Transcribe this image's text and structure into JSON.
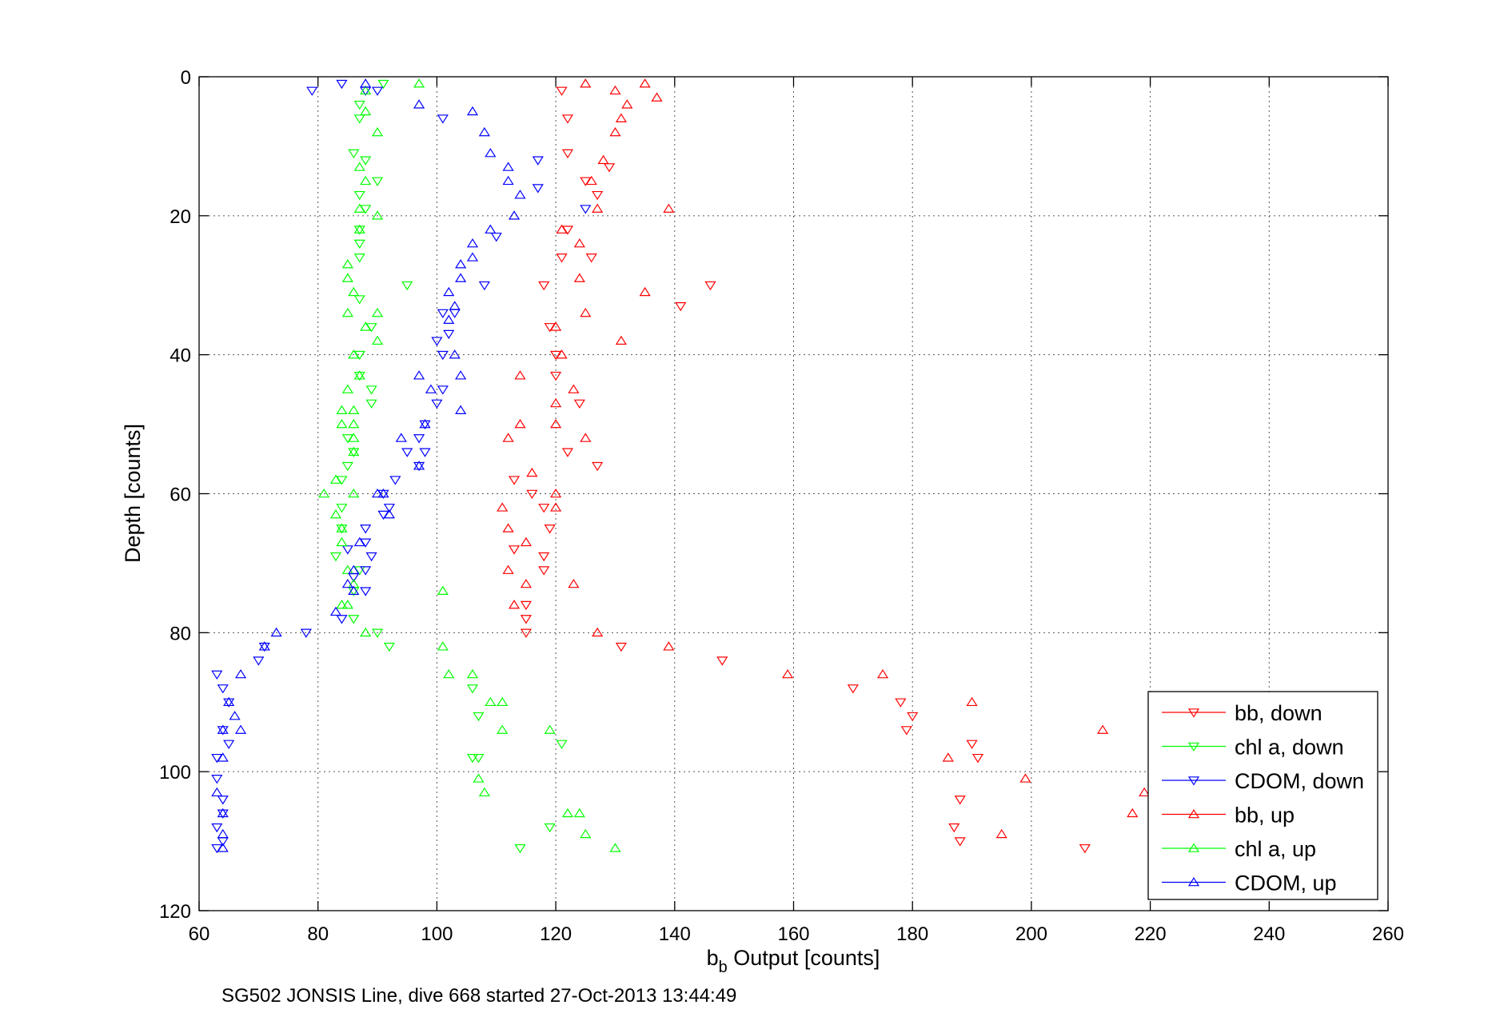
{
  "chart_data": {
    "type": "scatter",
    "xlabel_main": "b",
    "xlabel_sub": "b",
    "xlabel_rest": " Output [counts]",
    "ylabel": "Depth [counts]",
    "caption": "SG502 JONSIS Line, dive 668 started 27-Oct-2013 13:44:49",
    "xlim": [
      60,
      260
    ],
    "ylim": [
      0,
      120
    ],
    "y_reversed": true,
    "grid": true,
    "legend_position": "bottom-right",
    "xticks": [
      "60",
      "80",
      "100",
      "120",
      "140",
      "160",
      "180",
      "200",
      "220",
      "240",
      "260"
    ],
    "yticks": [
      "0",
      "20",
      "40",
      "60",
      "80",
      "100",
      "120"
    ],
    "series": [
      {
        "name": "bb, down",
        "color": "#ff0000",
        "marker": "triangle-down",
        "points": [
          [
            121,
            2
          ],
          [
            122,
            6
          ],
          [
            122,
            11
          ],
          [
            129,
            13
          ],
          [
            125,
            15
          ],
          [
            127,
            17
          ],
          [
            122,
            22
          ],
          [
            121,
            26
          ],
          [
            126,
            26
          ],
          [
            118,
            30
          ],
          [
            146,
            30
          ],
          [
            141,
            33
          ],
          [
            119,
            36
          ],
          [
            120,
            40
          ],
          [
            120,
            43
          ],
          [
            124,
            47
          ],
          [
            122,
            54
          ],
          [
            127,
            56
          ],
          [
            113,
            58
          ],
          [
            116,
            60
          ],
          [
            118,
            62
          ],
          [
            119,
            65
          ],
          [
            113,
            68
          ],
          [
            118,
            69
          ],
          [
            118,
            71
          ],
          [
            115,
            76
          ],
          [
            115,
            78
          ],
          [
            115,
            80
          ],
          [
            131,
            82
          ],
          [
            148,
            84
          ],
          [
            170,
            88
          ],
          [
            178,
            90
          ],
          [
            180,
            92
          ],
          [
            179,
            94
          ],
          [
            190,
            96
          ],
          [
            191,
            98
          ],
          [
            188,
            104
          ],
          [
            187,
            108
          ],
          [
            188,
            110
          ],
          [
            209,
            111
          ]
        ]
      },
      {
        "name": "chl a, down",
        "color": "#00ff00",
        "marker": "triangle-down",
        "points": [
          [
            91,
            1
          ],
          [
            87,
            4
          ],
          [
            87,
            6
          ],
          [
            86,
            11
          ],
          [
            88,
            12
          ],
          [
            90,
            15
          ],
          [
            87,
            17
          ],
          [
            88,
            19
          ],
          [
            87,
            22
          ],
          [
            87,
            24
          ],
          [
            87,
            26
          ],
          [
            95,
            30
          ],
          [
            87,
            32
          ],
          [
            89,
            36
          ],
          [
            87,
            40
          ],
          [
            87,
            43
          ],
          [
            89,
            45
          ],
          [
            89,
            47
          ],
          [
            85,
            52
          ],
          [
            86,
            54
          ],
          [
            85,
            56
          ],
          [
            84,
            58
          ],
          [
            84,
            62
          ],
          [
            84,
            65
          ],
          [
            83,
            69
          ],
          [
            87,
            71
          ],
          [
            86,
            74
          ],
          [
            86,
            78
          ],
          [
            90,
            80
          ],
          [
            92,
            82
          ],
          [
            106,
            88
          ],
          [
            107,
            92
          ],
          [
            106,
            98
          ],
          [
            107,
            98
          ],
          [
            121,
            96
          ],
          [
            119,
            108
          ],
          [
            114,
            111
          ]
        ]
      },
      {
        "name": "CDOM, down",
        "color": "#0000ff",
        "marker": "triangle-down",
        "points": [
          [
            84,
            1
          ],
          [
            88,
            2
          ],
          [
            90,
            2
          ],
          [
            79,
            2
          ],
          [
            101,
            6
          ],
          [
            117,
            12
          ],
          [
            117,
            16
          ],
          [
            125,
            19
          ],
          [
            110,
            23
          ],
          [
            108,
            30
          ],
          [
            101,
            34
          ],
          [
            103,
            34
          ],
          [
            102,
            37
          ],
          [
            100,
            38
          ],
          [
            101,
            40
          ],
          [
            101,
            45
          ],
          [
            100,
            47
          ],
          [
            98,
            50
          ],
          [
            97,
            52
          ],
          [
            95,
            54
          ],
          [
            98,
            54
          ],
          [
            97,
            56
          ],
          [
            93,
            58
          ],
          [
            91,
            60
          ],
          [
            92,
            62
          ],
          [
            91,
            63
          ],
          [
            88,
            65
          ],
          [
            88,
            67
          ],
          [
            85,
            68
          ],
          [
            89,
            69
          ],
          [
            88,
            71
          ],
          [
            86,
            72
          ],
          [
            88,
            74
          ],
          [
            84,
            78
          ],
          [
            78,
            80
          ],
          [
            71,
            82
          ],
          [
            70,
            84
          ],
          [
            63,
            86
          ],
          [
            64,
            88
          ],
          [
            65,
            90
          ],
          [
            64,
            94
          ],
          [
            65,
            96
          ],
          [
            63,
            98
          ],
          [
            63,
            101
          ],
          [
            64,
            104
          ],
          [
            64,
            106
          ],
          [
            63,
            108
          ],
          [
            64,
            110
          ],
          [
            63,
            111
          ]
        ]
      },
      {
        "name": "bb, up",
        "color": "#ff0000",
        "marker": "triangle-up",
        "points": [
          [
            125,
            1
          ],
          [
            130,
            2
          ],
          [
            135,
            1
          ],
          [
            137,
            3
          ],
          [
            132,
            4
          ],
          [
            131,
            6
          ],
          [
            130,
            8
          ],
          [
            128,
            12
          ],
          [
            126,
            15
          ],
          [
            127,
            19
          ],
          [
            139,
            19
          ],
          [
            121,
            22
          ],
          [
            124,
            24
          ],
          [
            124,
            29
          ],
          [
            135,
            31
          ],
          [
            120,
            36
          ],
          [
            125,
            34
          ],
          [
            131,
            38
          ],
          [
            121,
            40
          ],
          [
            114,
            43
          ],
          [
            123,
            45
          ],
          [
            120,
            47
          ],
          [
            114,
            50
          ],
          [
            120,
            50
          ],
          [
            112,
            52
          ],
          [
            125,
            52
          ],
          [
            116,
            57
          ],
          [
            120,
            60
          ],
          [
            111,
            62
          ],
          [
            120,
            62
          ],
          [
            112,
            65
          ],
          [
            115,
            67
          ],
          [
            112,
            71
          ],
          [
            115,
            73
          ],
          [
            123,
            73
          ],
          [
            113,
            76
          ],
          [
            127,
            80
          ],
          [
            139,
            82
          ],
          [
            159,
            86
          ],
          [
            175,
            86
          ],
          [
            190,
            90
          ],
          [
            186,
            98
          ],
          [
            199,
            101
          ],
          [
            219,
            103
          ],
          [
            217,
            106
          ],
          [
            195,
            109
          ],
          [
            212,
            94
          ]
        ]
      },
      {
        "name": "chl a, up",
        "color": "#00ff00",
        "marker": "triangle-up",
        "points": [
          [
            88,
            2
          ],
          [
            97,
            1
          ],
          [
            88,
            5
          ],
          [
            90,
            8
          ],
          [
            87,
            13
          ],
          [
            88,
            15
          ],
          [
            87,
            19
          ],
          [
            90,
            20
          ],
          [
            87,
            22
          ],
          [
            85,
            27
          ],
          [
            85,
            29
          ],
          [
            86,
            31
          ],
          [
            90,
            34
          ],
          [
            85,
            34
          ],
          [
            88,
            36
          ],
          [
            90,
            38
          ],
          [
            86,
            40
          ],
          [
            87,
            43
          ],
          [
            85,
            45
          ],
          [
            84,
            48
          ],
          [
            86,
            48
          ],
          [
            84,
            50
          ],
          [
            86,
            50
          ],
          [
            86,
            52
          ],
          [
            86,
            54
          ],
          [
            83,
            58
          ],
          [
            81,
            60
          ],
          [
            86,
            60
          ],
          [
            83,
            63
          ],
          [
            84,
            65
          ],
          [
            84,
            67
          ],
          [
            85,
            71
          ],
          [
            86,
            73
          ],
          [
            84,
            76
          ],
          [
            85,
            76
          ],
          [
            88,
            80
          ],
          [
            101,
            74
          ],
          [
            101,
            82
          ],
          [
            102,
            86
          ],
          [
            106,
            86
          ],
          [
            111,
            90
          ],
          [
            109,
            90
          ],
          [
            111,
            94
          ],
          [
            119,
            94
          ],
          [
            108,
            103
          ],
          [
            107,
            101
          ],
          [
            122,
            106
          ],
          [
            124,
            106
          ],
          [
            125,
            109
          ],
          [
            130,
            111
          ]
        ]
      },
      {
        "name": "CDOM, up",
        "color": "#0000ff",
        "marker": "triangle-up",
        "points": [
          [
            88,
            1
          ],
          [
            97,
            4
          ],
          [
            106,
            5
          ],
          [
            108,
            8
          ],
          [
            109,
            11
          ],
          [
            112,
            13
          ],
          [
            112,
            15
          ],
          [
            114,
            17
          ],
          [
            113,
            20
          ],
          [
            109,
            22
          ],
          [
            106,
            24
          ],
          [
            106,
            26
          ],
          [
            104,
            27
          ],
          [
            104,
            29
          ],
          [
            102,
            31
          ],
          [
            103,
            33
          ],
          [
            102,
            35
          ],
          [
            103,
            40
          ],
          [
            97,
            43
          ],
          [
            104,
            43
          ],
          [
            99,
            45
          ],
          [
            104,
            48
          ],
          [
            98,
            50
          ],
          [
            94,
            52
          ],
          [
            97,
            56
          ],
          [
            90,
            60
          ],
          [
            91,
            60
          ],
          [
            92,
            63
          ],
          [
            87,
            67
          ],
          [
            86,
            71
          ],
          [
            85,
            73
          ],
          [
            86,
            74
          ],
          [
            83,
            77
          ],
          [
            73,
            80
          ],
          [
            71,
            82
          ],
          [
            67,
            86
          ],
          [
            65,
            90
          ],
          [
            66,
            92
          ],
          [
            67,
            94
          ],
          [
            64,
            94
          ],
          [
            64,
            98
          ],
          [
            63,
            103
          ],
          [
            64,
            106
          ],
          [
            64,
            109
          ],
          [
            64,
            111
          ]
        ]
      }
    ]
  }
}
